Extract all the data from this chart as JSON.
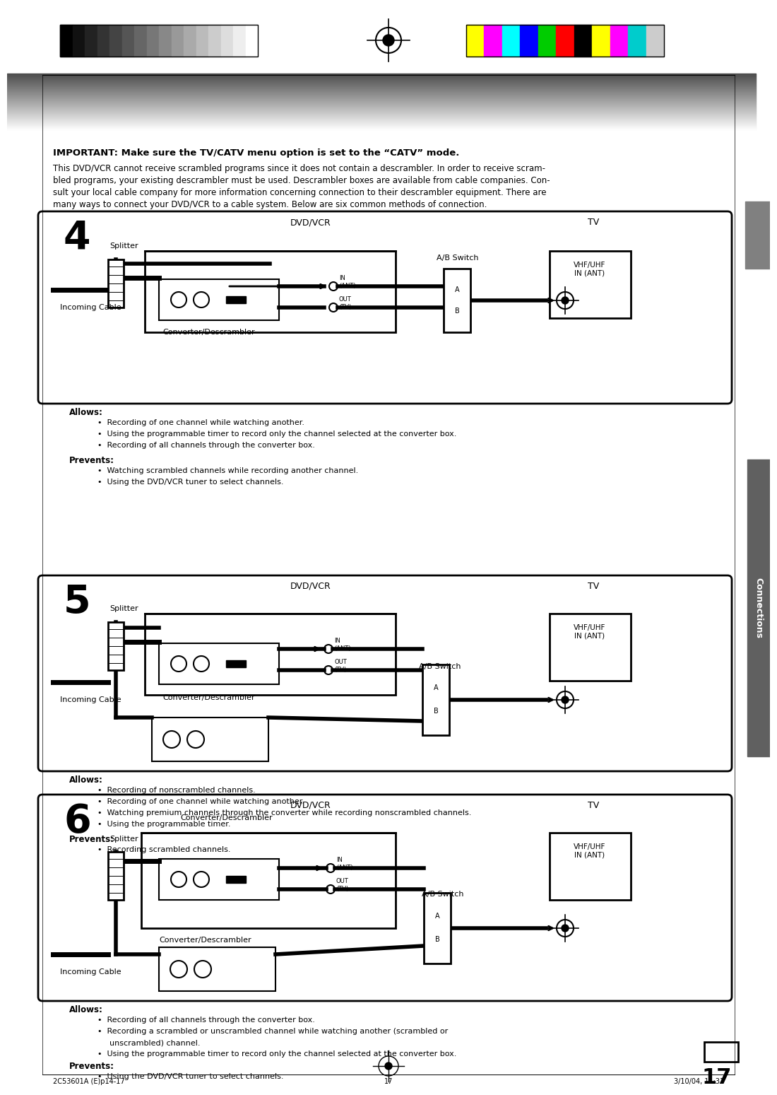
{
  "title_bar_colors_bw": [
    "#000000",
    "#111111",
    "#222222",
    "#333333",
    "#444444",
    "#555555",
    "#666666",
    "#777777",
    "#888888",
    "#999999",
    "#aaaaaa",
    "#bbbbbb",
    "#cccccc",
    "#dddddd",
    "#eeeeee",
    "#ffffff"
  ],
  "title_bar_colors_rgb": [
    "#ffff00",
    "#ff00ff",
    "#00ffff",
    "#0000ff",
    "#00cc00",
    "#ff0000",
    "#000000",
    "#ffff00",
    "#ff00ff",
    "#00cccc",
    "#cccccc"
  ],
  "bg_color": "#ffffff",
  "important_text": "IMPORTANT: Make sure the TV/CATV menu option is set to the “CATV” mode.",
  "body_text": "This DVD/VCR cannot receive scrambled programs since it does not contain a descrambler. In order to receive scram-\nbled programs, your existing descrambler must be used. Descrambler boxes are available from cable companies. Con-\nsult your local cable company for more information concerning connection to their descrambler equipment. There are\nmany ways to connect your DVD/VCR to a cable system. Below are six common methods of connection.",
  "diagram4_allows": [
    "Recording of one channel while watching another.",
    "Using the programmable timer to record only the channel selected at the converter box.",
    "Recording of all channels through the converter box."
  ],
  "diagram4_prevents": [
    "Watching scrambled channels while recording another channel.",
    "Using the DVD/VCR tuner to select channels."
  ],
  "diagram5_allows": [
    "Recording of nonscrambled channels.",
    "Recording of one channel while watching another.",
    "Watching premium channels through the converter while recording nonscrambled channels.",
    "Using the programmable timer."
  ],
  "diagram5_prevents": [
    "Recording scrambled channels."
  ],
  "diagram6_allows": [
    "Recording of all channels through the converter box.",
    "Recording a scrambled or unscrambled channel while watching another (scrambled or",
    "unscrambled) channel.",
    "Using the programmable timer to record only the channel selected at the converter box."
  ],
  "diagram6_prevents": [
    "Using the DVD/VCR tuner to select channels."
  ],
  "sidebar_text": "Connections",
  "page_number": "17",
  "footer_left": "2C53601A (E)p14-17",
  "footer_center": "17",
  "footer_right": "3/10/04, 11:31"
}
